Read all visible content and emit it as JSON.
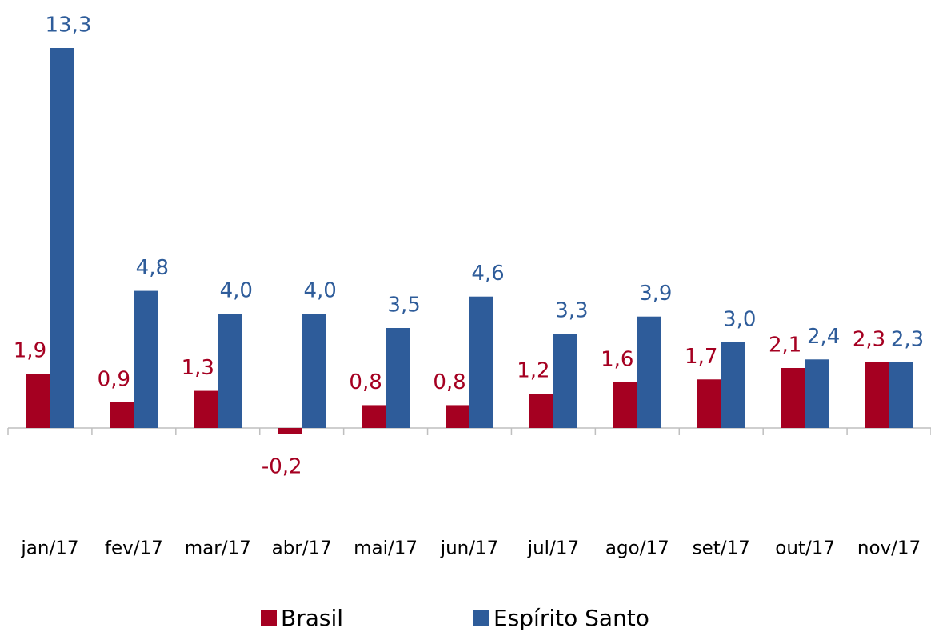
{
  "chart_data": {
    "type": "bar",
    "categories": [
      "jan/17",
      "fev/17",
      "mar/17",
      "abr/17",
      "mai/17",
      "jun/17",
      "jul/17",
      "ago/17",
      "set/17",
      "out/17",
      "nov/17"
    ],
    "series": [
      {
        "name": "Brasil",
        "color": "#a50021",
        "values": [
          1.9,
          0.9,
          1.3,
          -0.2,
          0.8,
          0.8,
          1.2,
          1.6,
          1.7,
          2.1,
          2.3
        ],
        "value_labels": [
          "1,9",
          "0,9",
          "1,3",
          "-0,2",
          "0,8",
          "0,8",
          "1,2",
          "1,6",
          "1,7",
          "2,1",
          "2,3"
        ]
      },
      {
        "name": "Espírito Santo",
        "color": "#2e5c9a",
        "values": [
          13.3,
          4.8,
          4.0,
          4.0,
          3.5,
          4.6,
          3.3,
          3.9,
          3.0,
          2.4,
          2.3
        ],
        "value_labels": [
          "13,3",
          "4,8",
          "4,0",
          "4,0",
          "3,5",
          "4,6",
          "3,3",
          "3,9",
          "3,0",
          "2,4",
          "2,3"
        ]
      }
    ]
  }
}
